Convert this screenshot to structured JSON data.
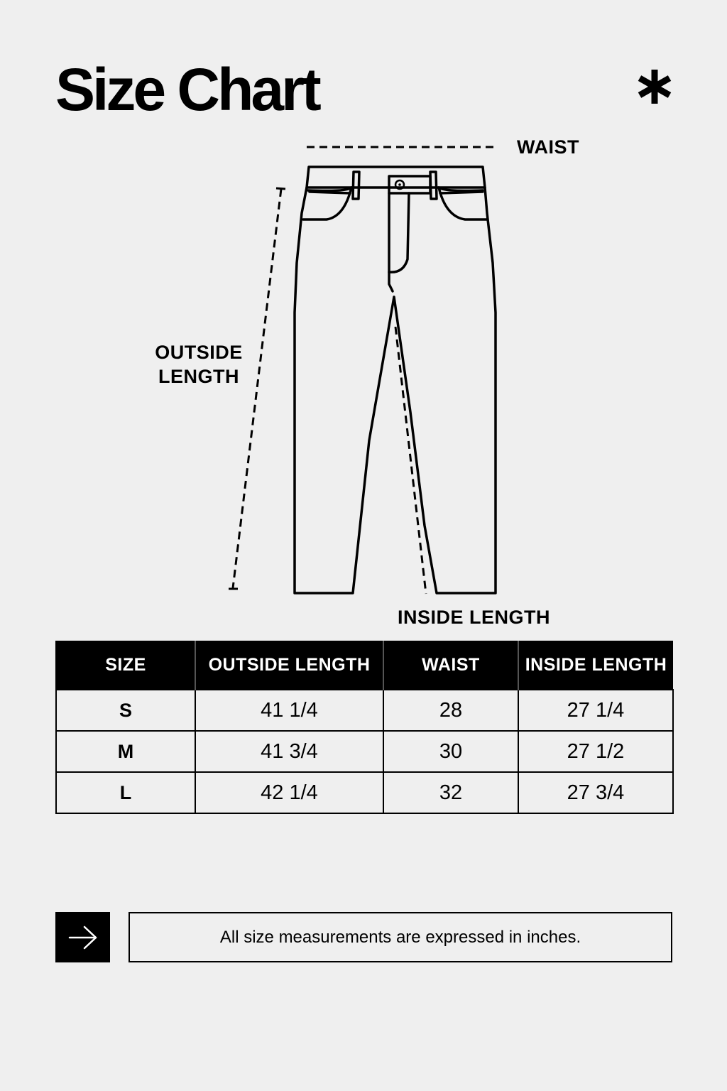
{
  "page": {
    "title": "Size Chart"
  },
  "icons": {
    "corner": "asterisk-icon",
    "note": "arrow-right-icon"
  },
  "diagram": {
    "labels": {
      "waist": "WAIST",
      "outside_line1": "OUTSIDE",
      "outside_line2": "LENGTH",
      "inside": "INSIDE LENGTH"
    }
  },
  "table": {
    "headers": [
      "SIZE",
      "OUTSIDE LENGTH",
      "WAIST",
      "INSIDE LENGTH"
    ],
    "rows": [
      [
        "S",
        "41 1/4",
        "28",
        "27 1/4"
      ],
      [
        "M",
        "41 3/4",
        "30",
        "27 1/2"
      ],
      [
        "L",
        "42 1/4",
        "32",
        "27 3/4"
      ]
    ]
  },
  "note": {
    "text": "All size measurements are expressed in inches."
  },
  "colors": {
    "background": "#efefef",
    "ink": "#000000",
    "header_text": "#ffffff"
  }
}
